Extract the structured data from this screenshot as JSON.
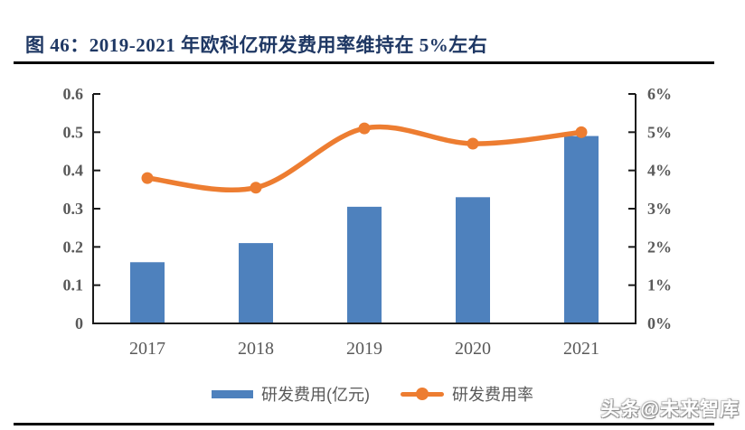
{
  "title": "图 46：2019-2021 年欧科亿研发费用率维持在 5%左右",
  "watermark": "头条@未来智库",
  "colors": {
    "bar": "#4E81BD",
    "line": "#ED7D31",
    "axis": "#1a1a1a",
    "label": "#595959",
    "title": "#1F3864"
  },
  "chart_data": {
    "type": "bar",
    "subtype": "bar+line combo, dual axis",
    "categories": [
      "2017",
      "2018",
      "2019",
      "2020",
      "2021"
    ],
    "series": [
      {
        "name": "研发费用(亿元)",
        "type": "bar",
        "axis": "left",
        "values": [
          0.16,
          0.21,
          0.305,
          0.33,
          0.49
        ]
      },
      {
        "name": "研发费用率",
        "type": "line",
        "axis": "right",
        "values": [
          3.8,
          3.55,
          5.1,
          4.7,
          5.0
        ],
        "unit": "%"
      }
    ],
    "left_axis": {
      "min": 0,
      "max": 0.6,
      "step": 0.1,
      "tick_labels": [
        "0",
        "0.1",
        "0.2",
        "0.3",
        "0.4",
        "0.5",
        "0.6"
      ]
    },
    "right_axis": {
      "min": 0,
      "max": 6,
      "step": 1,
      "tick_labels": [
        "0%",
        "1%",
        "2%",
        "3%",
        "4%",
        "5%",
        "6%"
      ]
    },
    "grid": false,
    "legend_position": "bottom"
  }
}
